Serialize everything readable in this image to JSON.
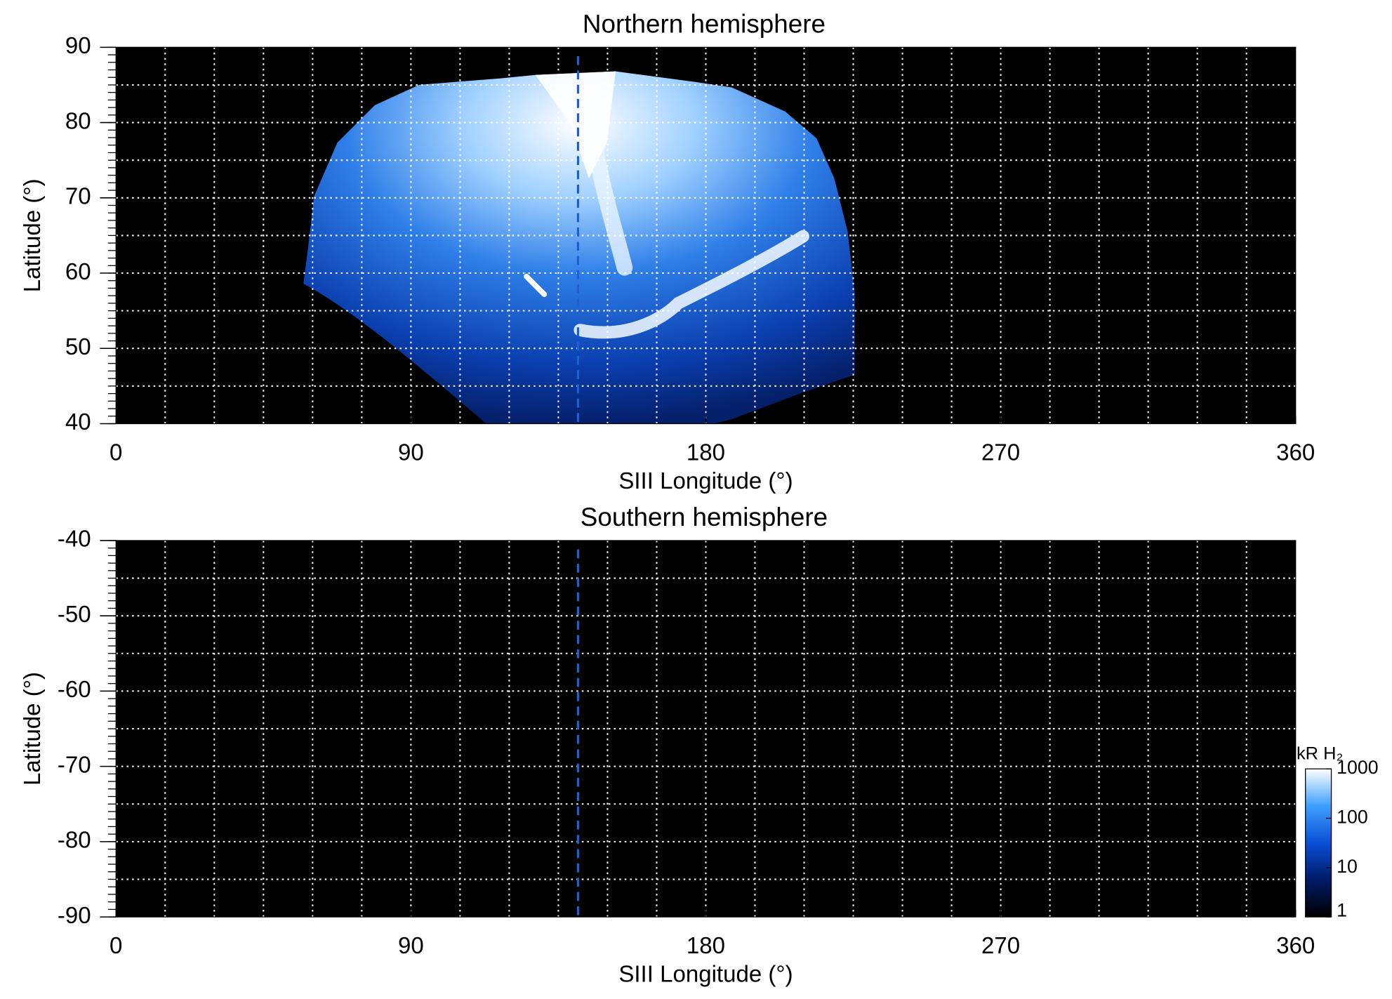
{
  "chart_data": [
    {
      "type": "heatmap",
      "title": "Northern hemisphere",
      "x_label": "SIII Longitude (°)",
      "y_label": "Latitude (°)",
      "xlim": [
        0,
        360
      ],
      "xticks": [
        0,
        90,
        180,
        270,
        360
      ],
      "ylim": [
        40,
        90
      ],
      "yticks": [
        40,
        50,
        60,
        70,
        80,
        90
      ],
      "grid": true,
      "grid_x_step": 15,
      "grid_y_step": 5,
      "marker_longitude": 141,
      "marker_color": "#1f5fd0"
    },
    {
      "type": "heatmap",
      "title": "Southern hemisphere",
      "x_label": "SIII Longitude (°)",
      "y_label": "Latitude (°)",
      "xlim": [
        0,
        360
      ],
      "xticks": [
        0,
        90,
        180,
        270,
        360
      ],
      "ylim": [
        -90,
        -40
      ],
      "yticks": [
        -40,
        -50,
        -60,
        -70,
        -80,
        -90
      ],
      "grid": true,
      "grid_x_step": 15,
      "grid_y_step": 5,
      "marker_longitude": 141,
      "marker_color": "#1f5fd0",
      "colorbar": {
        "label": "kR H₂",
        "log": true,
        "lim": [
          1,
          1000
        ],
        "ticks": [
          1,
          10,
          100,
          1000
        ],
        "colors": [
          "#000000",
          "#001a66",
          "#0a4fd6",
          "#3fa0ff",
          "#ffffff"
        ]
      }
    }
  ]
}
